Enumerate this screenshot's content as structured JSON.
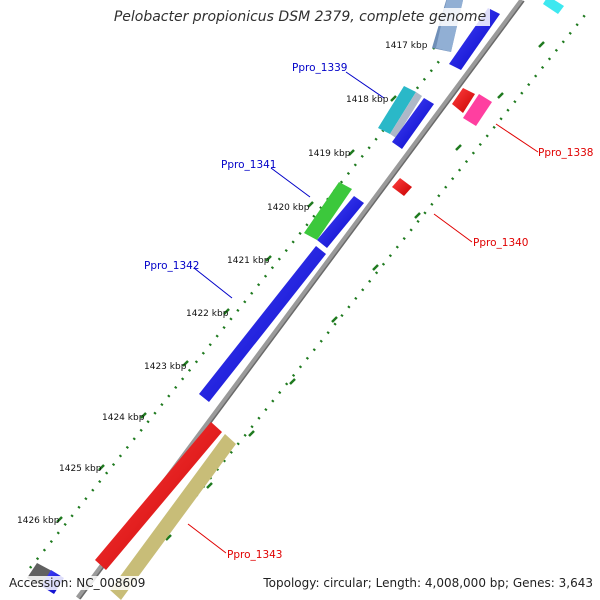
{
  "title": "Pelobacter propionicus DSM 2379, complete genome",
  "accession": "Accession: NC_008609",
  "summary": "Topology: circular; Length: 4,008,000 bp; Genes: 3,643",
  "ruler_labels": [
    "1417 kbp",
    "1418 kbp",
    "1419 kbp",
    "1420 kbp",
    "1421 kbp",
    "1422 kbp",
    "1423 kbp",
    "1424 kbp",
    "1425 kbp",
    "1426 kbp"
  ],
  "gene_labels": {
    "ppro_1338": "Ppro_1338",
    "ppro_1339": "Ppro_1339",
    "ppro_1340": "Ppro_1340",
    "ppro_1341": "Ppro_1341",
    "ppro_1342": "Ppro_1342",
    "ppro_1343": "Ppro_1343"
  },
  "colors": {
    "forward_label": "#0000c8",
    "reverse_label": "#e00000",
    "backbone": "#808080",
    "tick": "#1f7a1f"
  }
}
